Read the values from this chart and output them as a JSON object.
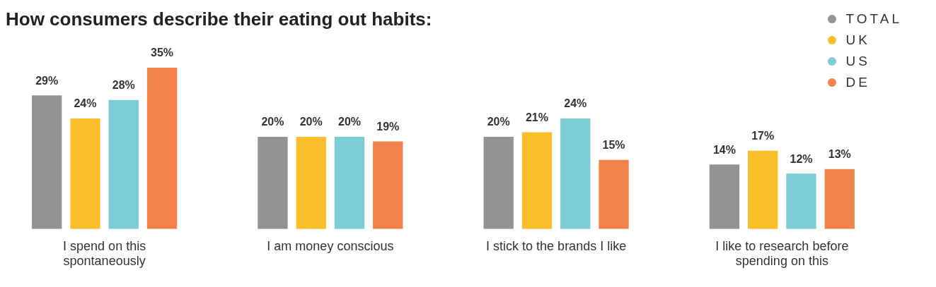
{
  "chart_data": {
    "type": "bar",
    "title": "How consumers describe their eating out habits:",
    "categories": [
      "I spend on this spontaneously",
      "I am money conscious",
      "I stick to the brands I like",
      "I like to research before spending on this"
    ],
    "series": [
      {
        "name": "TOTAL",
        "color": "#939393",
        "values": [
          29,
          20,
          20,
          14
        ],
        "value_labels": [
          "29%",
          "20%",
          "20%",
          "14%"
        ]
      },
      {
        "name": "UK",
        "color": "#fbbf2e",
        "values": [
          24,
          20,
          21,
          17
        ],
        "value_labels": [
          "24%",
          "20%",
          "21%",
          "17%"
        ]
      },
      {
        "name": "US",
        "color": "#7dcdd6",
        "values": [
          28,
          20,
          24,
          12
        ],
        "value_labels": [
          "28%",
          "20%",
          "24%",
          "12%"
        ]
      },
      {
        "name": "DE",
        "color": "#f2824c",
        "values": [
          35,
          19,
          15,
          13
        ],
        "value_labels": [
          "35%",
          "19%",
          "15%",
          "13%"
        ]
      }
    ],
    "legend": "top right",
    "grid": false
  }
}
